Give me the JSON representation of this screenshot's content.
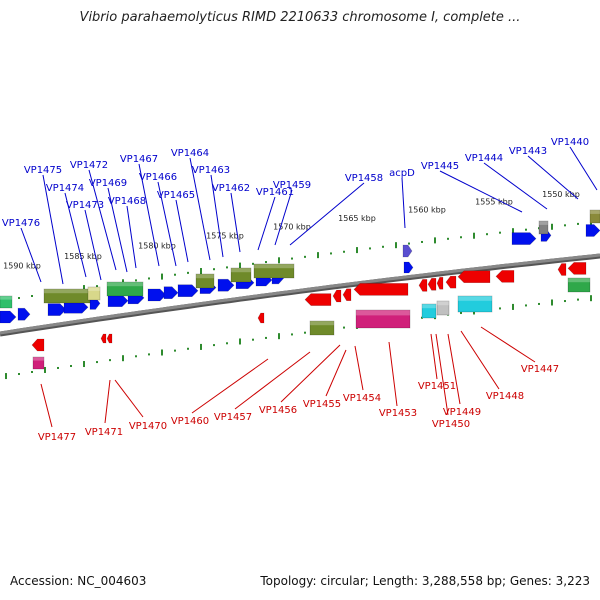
{
  "title": "Vibrio parahaemolyticus RIMD 2210633 chromosome I, complete ...",
  "footer": {
    "accession": "Accession: NC_004603",
    "stats": "Topology: circular; Length: 3,288,558 bp; Genes: 3,223"
  },
  "colors": {
    "forward_label": "#0000cc",
    "reverse_label": "#cc0000",
    "backbone": "#888888",
    "tick": "#2e8b2e"
  },
  "scale_labels": [
    "1590 kbp",
    "1585 kbp",
    "1580 kbp",
    "1575 kbp",
    "1570 kbp",
    "1565 kbp",
    "1560 kbp",
    "1555 kbp",
    "1550 kbp"
  ],
  "forward_labels": [
    "VP1476",
    "VP1475",
    "VP1474",
    "VP1473",
    "VP1472",
    "VP1469",
    "VP1468",
    "VP1467",
    "VP1466",
    "VP1465",
    "VP1464",
    "VP1463",
    "VP1462",
    "VP1461",
    "VP1459",
    "VP1458",
    "acpD",
    "VP1445",
    "VP1444",
    "VP1443",
    "VP1440"
  ],
  "reverse_labels": [
    "VP1477",
    "VP1471",
    "VP1470",
    "VP1460",
    "VP1457",
    "VP1456",
    "VP1455",
    "VP1454",
    "VP1453",
    "VP1451",
    "VP1450",
    "VP1449",
    "VP1448",
    "VP1447"
  ]
}
